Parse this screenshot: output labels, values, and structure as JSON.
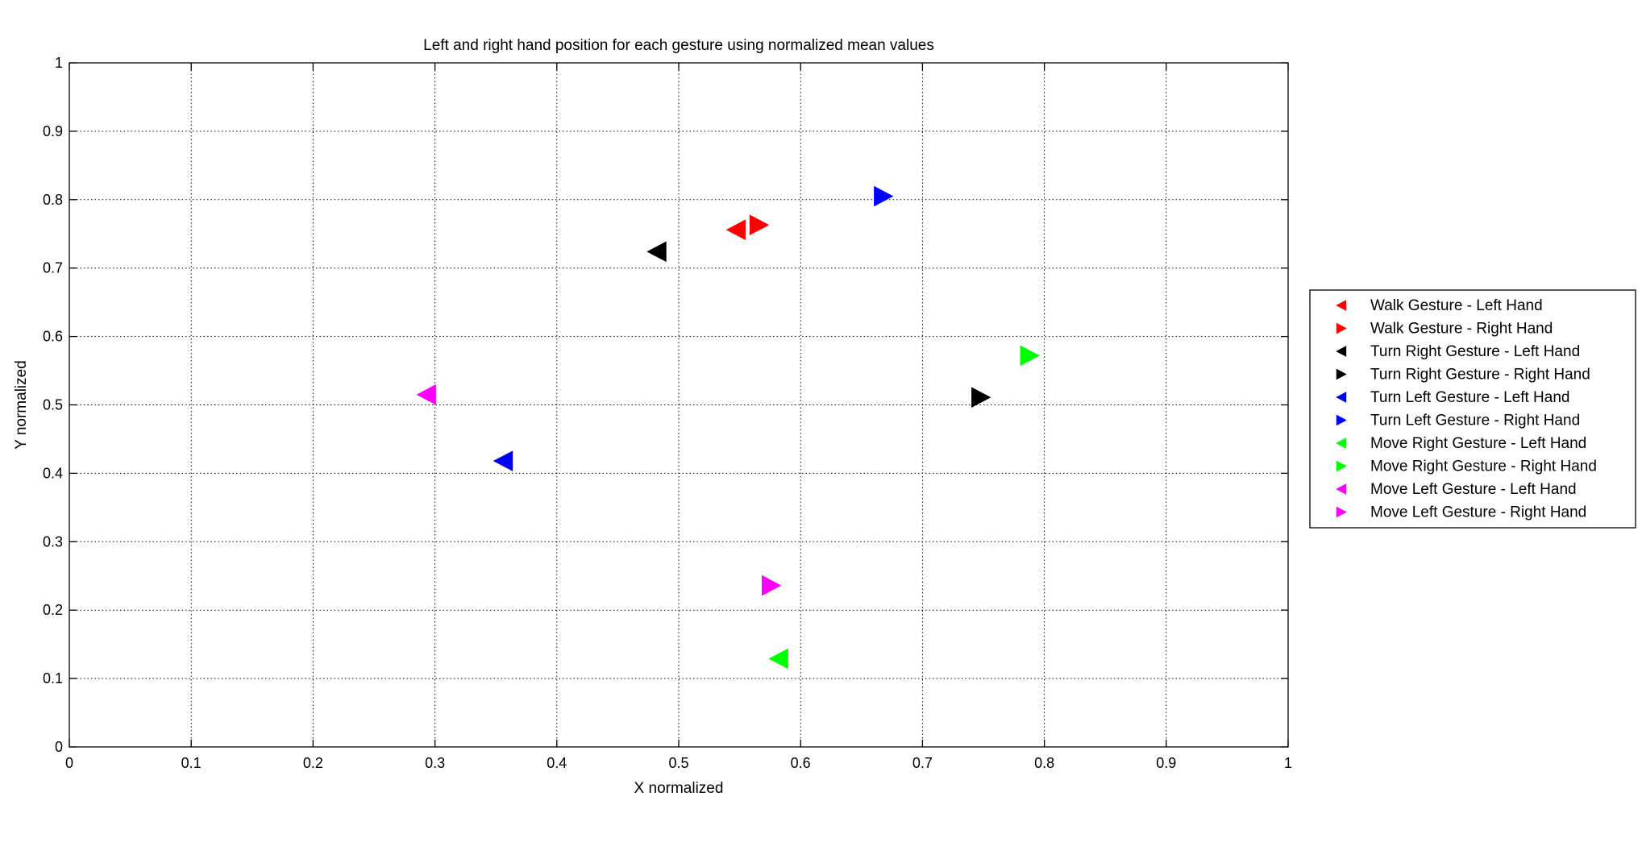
{
  "chart_data": {
    "type": "scatter",
    "title": "Left and right hand position for each gesture using normalized mean values",
    "xlabel": "X normalized",
    "ylabel": "Y normalized",
    "xlim": [
      0,
      1
    ],
    "ylim": [
      0,
      1
    ],
    "xticks": [
      "0",
      "0.1",
      "0.2",
      "0.3",
      "0.4",
      "0.5",
      "0.6",
      "0.7",
      "0.8",
      "0.9",
      "1"
    ],
    "yticks": [
      "0",
      "0.1",
      "0.2",
      "0.3",
      "0.4",
      "0.5",
      "0.6",
      "0.7",
      "0.8",
      "0.9",
      "1"
    ],
    "grid": true,
    "legend_position": "outside-right",
    "series": [
      {
        "name": "Walk Gesture - Left Hand",
        "marker": "triangle-left",
        "color": "#ff0000",
        "x": [
          0.547
        ],
        "y": [
          0.756
        ]
      },
      {
        "name": "Walk Gesture - Right Hand",
        "marker": "triangle-right",
        "color": "#ff0000",
        "x": [
          0.566
        ],
        "y": [
          0.763
        ]
      },
      {
        "name": "Turn Right Gesture - Left Hand",
        "marker": "triangle-left",
        "color": "#000000",
        "x": [
          0.482
        ],
        "y": [
          0.724
        ]
      },
      {
        "name": "Turn Right Gesture - Right Hand",
        "marker": "triangle-right",
        "color": "#000000",
        "x": [
          0.748
        ],
        "y": [
          0.511
        ]
      },
      {
        "name": "Turn Left Gesture - Left Hand",
        "marker": "triangle-left",
        "color": "#0000ff",
        "x": [
          0.356
        ],
        "y": [
          0.418
        ]
      },
      {
        "name": "Turn Left Gesture - Right Hand",
        "marker": "triangle-right",
        "color": "#0000ff",
        "x": [
          0.668
        ],
        "y": [
          0.805
        ]
      },
      {
        "name": "Move Right Gesture - Left Hand",
        "marker": "triangle-left",
        "color": "#00ff00",
        "x": [
          0.582
        ],
        "y": [
          0.129
        ]
      },
      {
        "name": "Move Right Gesture - Right Hand",
        "marker": "triangle-right",
        "color": "#00ff00",
        "x": [
          0.788
        ],
        "y": [
          0.572
        ]
      },
      {
        "name": "Move Left Gesture - Left Hand",
        "marker": "triangle-left",
        "color": "#ff00ff",
        "x": [
          0.293
        ],
        "y": [
          0.515
        ]
      },
      {
        "name": "Move Left Gesture - Right Hand",
        "marker": "triangle-right",
        "color": "#ff00ff",
        "x": [
          0.576
        ],
        "y": [
          0.236
        ]
      }
    ]
  }
}
